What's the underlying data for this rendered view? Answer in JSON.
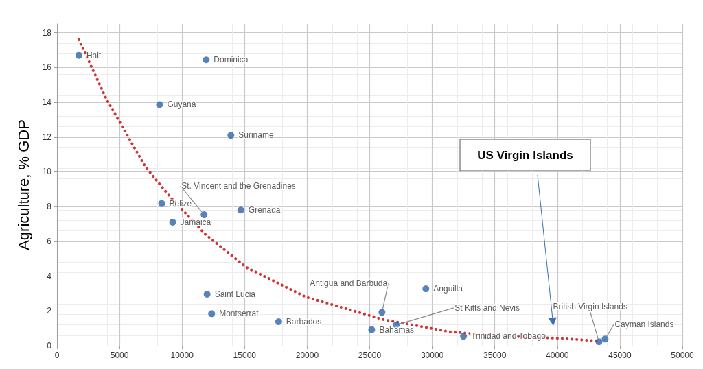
{
  "chart_data": {
    "type": "scatter",
    "ylabel": "Agriculture, % GDP",
    "xlim": [
      0,
      50000
    ],
    "xticks": [
      0,
      5000,
      10000,
      15000,
      20000,
      25000,
      30000,
      35000,
      40000,
      45000,
      50000
    ],
    "ylim": [
      0,
      18.5
    ],
    "yticks": [
      0,
      2,
      4,
      6,
      8,
      10,
      12,
      14,
      16,
      18
    ],
    "grid": true,
    "annotations": [
      "US Virgin Islands"
    ],
    "series": [
      {
        "color": "#2e64a8",
        "marker": "circle",
        "x": [
          1750,
          11930,
          8200,
          13900,
          8370,
          9250,
          11760,
          14700,
          12000,
          12360,
          17720,
          25160,
          25980,
          27130,
          29490,
          32500,
          43330,
          43820
        ],
        "values": [
          16.7,
          16.44,
          13.87,
          12.1,
          8.18,
          7.1,
          7.53,
          7.8,
          2.96,
          1.84,
          1.38,
          0.92,
          1.92,
          1.19,
          3.27,
          0.54,
          0.23,
          0.38
        ],
        "value_labels": [
          "Haiti",
          "Dominica",
          "Guyana",
          "Suriname",
          "Belize",
          "Jamaica",
          "St. Vincent and the Grenadines",
          "Grenada",
          "Saint Lucia",
          "Montserrat",
          "Barbados",
          "Bahamas",
          "Antigua and Barbuda",
          "St Kitts and Nevis",
          "Anguilla",
          "Trinidad and Tobago",
          "British Virgin Islands",
          "Cayman Islands"
        ]
      },
      {
        "type": "line",
        "color": "#d23232",
        "marker": "none",
        "line_style": "dotted",
        "x": [
          1750,
          3940,
          7060,
          9000,
          11870,
          15150,
          19900,
          26100,
          31400,
          36000,
          40300,
          43330
        ],
        "values": [
          17.6,
          14.2,
          10.3,
          8.6,
          6.4,
          4.5,
          2.8,
          1.5,
          0.8,
          0.55,
          0.42,
          0.27
        ]
      }
    ]
  }
}
